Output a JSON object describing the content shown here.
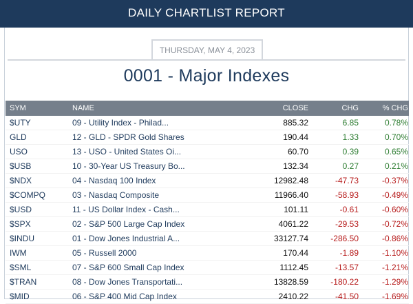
{
  "header": {
    "title": "DAILY CHARTLIST REPORT"
  },
  "report": {
    "date": "THURSDAY, MAY 4, 2023",
    "title": "0001 - Major Indexes"
  },
  "table": {
    "columns": {
      "sym": "SYM",
      "name": "NAME",
      "close": "CLOSE",
      "chg": "CHG",
      "pct": "% CHG"
    },
    "colors": {
      "positive": "#2e7d32",
      "negative": "#b71c1c"
    },
    "rows": [
      {
        "sym": "$UTY",
        "name": "09 - Utility Index - Philad...",
        "close": "885.32",
        "chg": "6.85",
        "pct": "0.78%",
        "dir": "pos"
      },
      {
        "sym": "GLD",
        "name": "12 - GLD - SPDR Gold Shares",
        "close": "190.44",
        "chg": "1.33",
        "pct": "0.70%",
        "dir": "pos"
      },
      {
        "sym": "USO",
        "name": "13 - USO - United States Oi...",
        "close": "60.70",
        "chg": "0.39",
        "pct": "0.65%",
        "dir": "pos"
      },
      {
        "sym": "$USB",
        "name": "10 - 30-Year US Treasury Bo...",
        "close": "132.34",
        "chg": "0.27",
        "pct": "0.21%",
        "dir": "pos"
      },
      {
        "sym": "$NDX",
        "name": "04 - Nasdaq 100 Index",
        "close": "12982.48",
        "chg": "-47.73",
        "pct": "-0.37%",
        "dir": "neg"
      },
      {
        "sym": "$COMPQ",
        "name": "03 - Nasdaq Composite",
        "close": "11966.40",
        "chg": "-58.93",
        "pct": "-0.49%",
        "dir": "neg"
      },
      {
        "sym": "$USD",
        "name": "11 - US Dollar Index - Cash...",
        "close": "101.11",
        "chg": "-0.61",
        "pct": "-0.60%",
        "dir": "neg"
      },
      {
        "sym": "$SPX",
        "name": "02 - S&P 500 Large Cap Index",
        "close": "4061.22",
        "chg": "-29.53",
        "pct": "-0.72%",
        "dir": "neg"
      },
      {
        "sym": "$INDU",
        "name": "01 - Dow Jones Industrial A...",
        "close": "33127.74",
        "chg": "-286.50",
        "pct": "-0.86%",
        "dir": "neg"
      },
      {
        "sym": "IWM",
        "name": "05 - Russell 2000",
        "close": "170.44",
        "chg": "-1.89",
        "pct": "-1.10%",
        "dir": "neg"
      },
      {
        "sym": "$SML",
        "name": "07 - S&P 600 Small Cap Index",
        "close": "1112.45",
        "chg": "-13.57",
        "pct": "-1.21%",
        "dir": "neg"
      },
      {
        "sym": "$TRAN",
        "name": "08 - Dow Jones Transportati...",
        "close": "13828.59",
        "chg": "-180.22",
        "pct": "-1.29%",
        "dir": "neg"
      },
      {
        "sym": "$MID",
        "name": "06 - S&P 400 Mid Cap Index",
        "close": "2410.22",
        "chg": "-41.50",
        "pct": "-1.69%",
        "dir": "neg"
      }
    ]
  }
}
